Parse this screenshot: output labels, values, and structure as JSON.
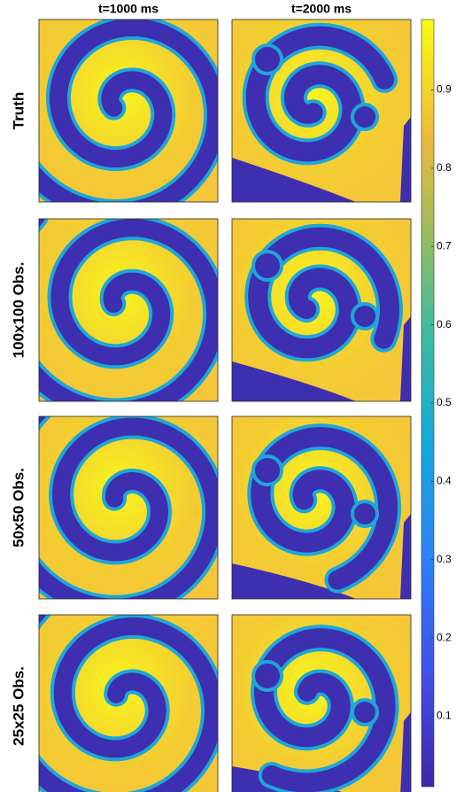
{
  "chart_data": {
    "type": "heatmap-grid",
    "columns": [
      "t=1000 ms",
      "t=2000 ms"
    ],
    "rows": [
      "Truth",
      "100x100 Obs.",
      "50x50 Obs.",
      "25x25 Obs."
    ],
    "colorbar": {
      "lim": [
        0.01,
        0.99
      ],
      "ticks": [
        0.1,
        0.2,
        0.3,
        0.4,
        0.5,
        0.6,
        0.7,
        0.8,
        0.9
      ]
    }
  }
}
